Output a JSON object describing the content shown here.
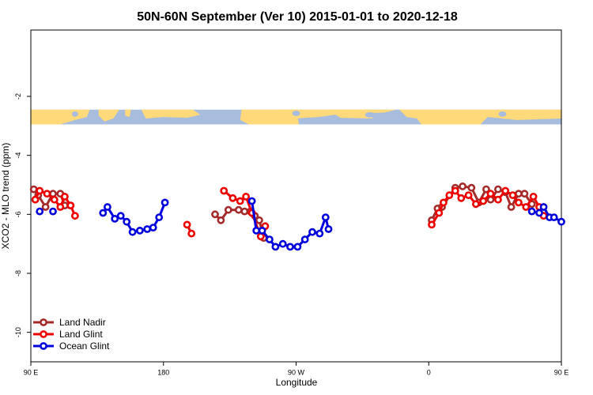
{
  "chart_data": {
    "type": "line",
    "title": "50N-60N September (Ver 10)   2015-01-01 to 2020-12-18",
    "xlabel": "Longitude",
    "ylabel": "XCO2 - MLO trend (ppm)",
    "xlim": [
      90,
      450
    ],
    "ylim": [
      -11,
      0.25
    ],
    "x_ticks": [
      {
        "value": 90,
        "label": "90 E"
      },
      {
        "value": 180,
        "label": "180"
      },
      {
        "value": 270,
        "label": "90 W"
      },
      {
        "value": 360,
        "label": "0"
      },
      {
        "value": 450,
        "label": "90 E"
      },
      {
        "value": 540,
        "label": "180"
      }
    ],
    "y_ticks": [
      {
        "value": -2,
        "label": "-2"
      },
      {
        "value": -4,
        "label": "-4"
      },
      {
        "value": -6,
        "label": "-6"
      },
      {
        "value": -8,
        "label": "-8"
      },
      {
        "value": -10,
        "label": "-10"
      }
    ],
    "map_band": {
      "y_top": -2.45,
      "y_bottom": -2.95,
      "land_color": "#FFD97A",
      "ocean_color": "#A8BCDE"
    },
    "legend_position": "bottom-left",
    "series": [
      {
        "name": "Land Nadir",
        "color": "#A52A2A",
        "segments": [
          [
            [
              92,
              -5.15
            ],
            [
              95,
              -5.35
            ],
            [
              100,
              -5.75
            ],
            [
              105,
              -5.3
            ],
            [
              110,
              -5.3
            ],
            [
              113,
              -5.7
            ],
            [
              117,
              -5.7
            ]
          ],
          [
            [
              215,
              -6.0
            ],
            [
              219,
              -6.2
            ],
            [
              224,
              -5.85
            ],
            [
              231,
              -5.85
            ],
            [
              235,
              -5.9
            ],
            [
              239,
              -5.9
            ],
            [
              242,
              -6.05
            ],
            [
              245,
              -6.2
            ],
            [
              248,
              -6.8
            ]
          ],
          [
            [
              362,
              -6.2
            ],
            [
              366,
              -5.8
            ],
            [
              369,
              -5.75
            ],
            [
              378,
              -5.1
            ],
            [
              383,
              -5.05
            ],
            [
              389,
              -5.1
            ],
            [
              394,
              -5.6
            ],
            [
              399,
              -5.15
            ],
            [
              402,
              -5.5
            ],
            [
              407,
              -5.15
            ],
            [
              412,
              -5.25
            ],
            [
              416,
              -5.75
            ],
            [
              421,
              -5.3
            ],
            [
              425,
              -5.3
            ],
            [
              430,
              -5.65
            ]
          ]
        ]
      },
      {
        "name": "Land Glint",
        "color": "#EE0000",
        "segments": [
          [
            [
              93,
              -5.5
            ],
            [
              96,
              -5.2
            ],
            [
              101,
              -5.3
            ],
            [
              106,
              -5.5
            ],
            [
              110,
              -5.75
            ],
            [
              113,
              -5.4
            ],
            [
              117,
              -5.7
            ],
            [
              120,
              -6.05
            ]
          ],
          [
            [
              196,
              -6.35
            ],
            [
              199,
              -6.65
            ]
          ],
          [
            [
              221,
              -5.2
            ],
            [
              227,
              -5.45
            ],
            [
              232,
              -5.55
            ],
            [
              236,
              -5.4
            ],
            [
              240,
              -5.95
            ],
            [
              246,
              -6.75
            ],
            [
              249,
              -6.4
            ]
          ],
          [
            [
              362,
              -6.35
            ],
            [
              367,
              -5.95
            ],
            [
              370,
              -5.6
            ],
            [
              374,
              -5.35
            ],
            [
              378,
              -5.2
            ],
            [
              382,
              -5.45
            ],
            [
              387,
              -5.35
            ],
            [
              392,
              -5.65
            ],
            [
              397,
              -5.55
            ],
            [
              402,
              -5.3
            ],
            [
              407,
              -5.5
            ],
            [
              412,
              -5.2
            ],
            [
              417,
              -5.35
            ],
            [
              421,
              -5.6
            ],
            [
              426,
              -5.75
            ],
            [
              431,
              -5.4
            ],
            [
              435,
              -5.75
            ],
            [
              438,
              -6.05
            ]
          ]
        ]
      },
      {
        "name": "Ocean Glint",
        "color": "#0000DD",
        "segments": [
          [
            [
              105,
              -5.9
            ]
          ],
          [
            [
              139,
              -5.95
            ],
            [
              142,
              -5.75
            ],
            [
              147,
              -6.15
            ],
            [
              151,
              -6.05
            ],
            [
              155,
              -6.25
            ],
            [
              159,
              -6.6
            ],
            [
              164,
              -6.55
            ],
            [
              169,
              -6.5
            ],
            [
              173,
              -6.45
            ],
            [
              177,
              -6.1
            ],
            [
              181,
              -5.6
            ]
          ],
          [
            [
              240,
              -5.55
            ],
            [
              243,
              -6.55
            ],
            [
              247,
              -6.55
            ],
            [
              252,
              -6.85
            ],
            [
              256,
              -7.1
            ],
            [
              261,
              -7.0
            ],
            [
              266,
              -7.1
            ],
            [
              271,
              -7.1
            ],
            [
              276,
              -6.85
            ],
            [
              281,
              -6.6
            ],
            [
              286,
              -6.65
            ],
            [
              290,
              -6.1
            ],
            [
              292,
              -6.5
            ]
          ],
          [
            [
              96,
              -5.9
            ]
          ],
          [
            [
              430,
              -5.9
            ]
          ],
          [
            [
              435,
              -5.95
            ],
            [
              438,
              -5.75
            ],
            [
              442,
              -6.1
            ],
            [
              445,
              -6.1
            ],
            [
              450,
              -6.25
            ]
          ]
        ]
      }
    ]
  }
}
